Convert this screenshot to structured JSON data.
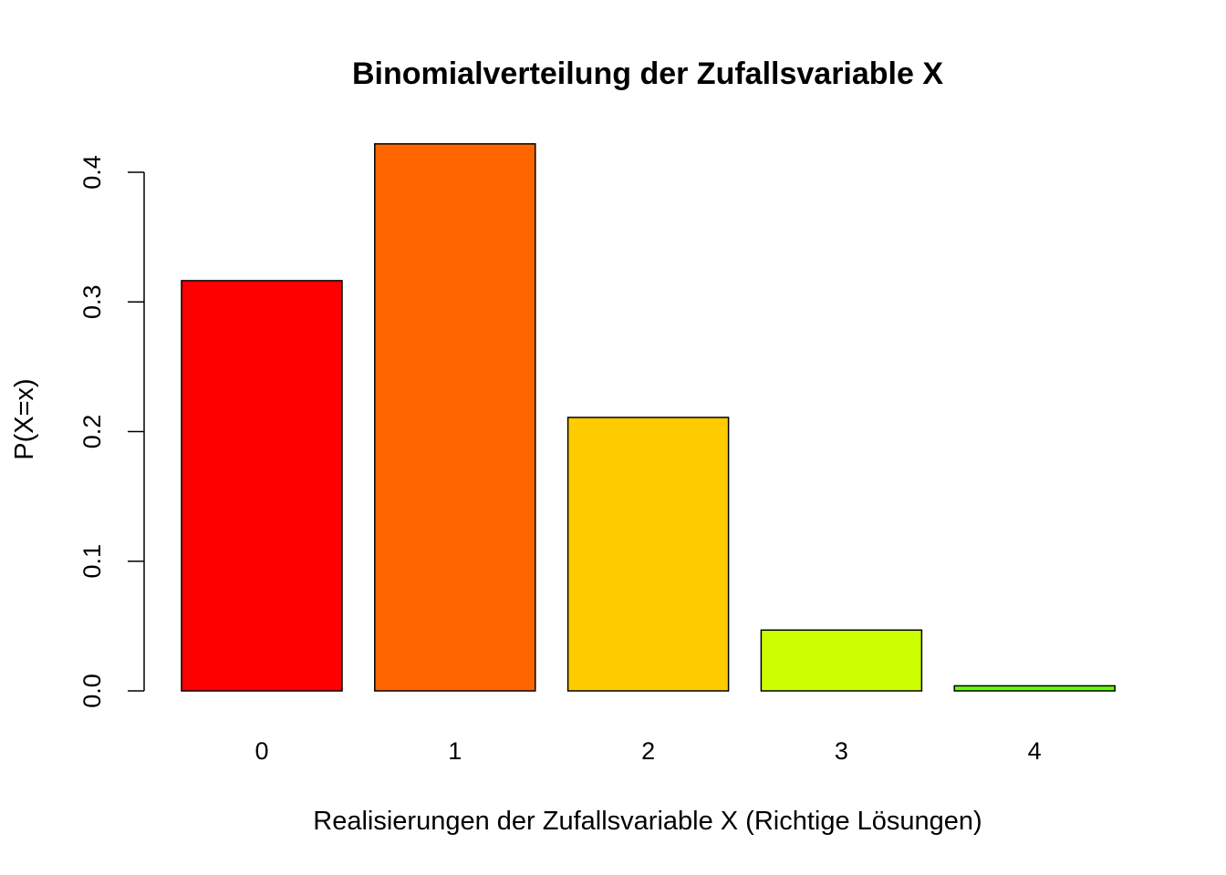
{
  "chart_data": {
    "type": "bar",
    "title": "Binomialverteilung der Zufallsvariable X",
    "xlabel": "Realisierungen der Zufallsvariable X (Richtige Lösungen)",
    "ylabel": "P(X=x)",
    "categories": [
      "0",
      "1",
      "2",
      "3",
      "4"
    ],
    "values": [
      0.3164,
      0.4219,
      0.2109,
      0.0469,
      0.0039
    ],
    "colors": [
      "#FF0000",
      "#FF6600",
      "#FFCC00",
      "#CCFF00",
      "#66FF00"
    ],
    "yticks": [
      "0.0",
      "0.1",
      "0.2",
      "0.3",
      "0.4"
    ],
    "ylim": [
      0,
      0.44
    ],
    "grid": false
  }
}
